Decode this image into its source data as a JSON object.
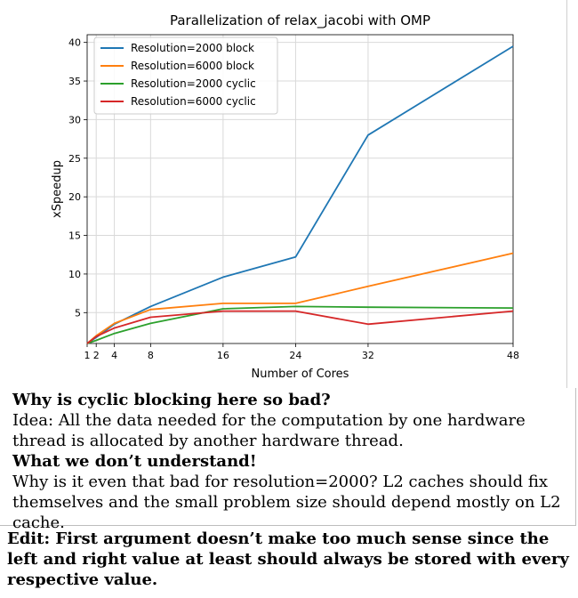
{
  "chart_data": {
    "type": "line",
    "title": "Parallelization of relax_jacobi with OMP",
    "xlabel": "Number of Cores",
    "ylabel": "xSpeedup",
    "xticks": [
      1,
      2,
      4,
      8,
      16,
      24,
      32,
      48
    ],
    "xticklabels": [
      "1",
      "2",
      "4",
      "8",
      "16",
      "24",
      "32",
      "48"
    ],
    "yticks": [
      5,
      10,
      15,
      20,
      25,
      30,
      35,
      40
    ],
    "xlim": [
      1,
      48
    ],
    "ylim": [
      1,
      41
    ],
    "grid": true,
    "legend_position": "top-left",
    "series": [
      {
        "name": "Resolution=2000 block",
        "color": "#1f77b4",
        "x": [
          1,
          2,
          4,
          8,
          16,
          24,
          32,
          48
        ],
        "y": [
          1.0,
          1.8,
          3.5,
          5.8,
          9.6,
          12.2,
          28.0,
          39.5
        ]
      },
      {
        "name": "Resolution=6000 block",
        "color": "#ff7f0e",
        "x": [
          1,
          2,
          4,
          8,
          16,
          24,
          32,
          48
        ],
        "y": [
          1.0,
          2.0,
          3.6,
          5.4,
          6.2,
          6.2,
          8.4,
          12.7
        ]
      },
      {
        "name": "Resolution=2000 cyclic",
        "color": "#2ca02c",
        "x": [
          1,
          2,
          4,
          8,
          16,
          24,
          32,
          48
        ],
        "y": [
          1.0,
          1.4,
          2.3,
          3.6,
          5.5,
          5.8,
          5.7,
          5.6
        ]
      },
      {
        "name": "Resolution=6000 cyclic",
        "color": "#d62728",
        "x": [
          1,
          2,
          4,
          8,
          16,
          24,
          32,
          48
        ],
        "y": [
          1.0,
          1.9,
          3.0,
          4.4,
          5.2,
          5.2,
          3.5,
          5.2
        ]
      }
    ]
  },
  "text": {
    "q_heading": "Why is cyclic blocking here so bad?",
    "idea": "Idea: All the data needed for the computation by one hardware thread is allocated by another hardware thread.",
    "dont_understand": "What we don’t understand!",
    "question": "Why is it even that bad for resolution=2000? L2 caches should fix themselves and the small problem size should depend mostly on L2 cache.",
    "edit": "Edit: First argument doesn’t make too much sense since the left and right value at least should always be stored with every respective value."
  }
}
